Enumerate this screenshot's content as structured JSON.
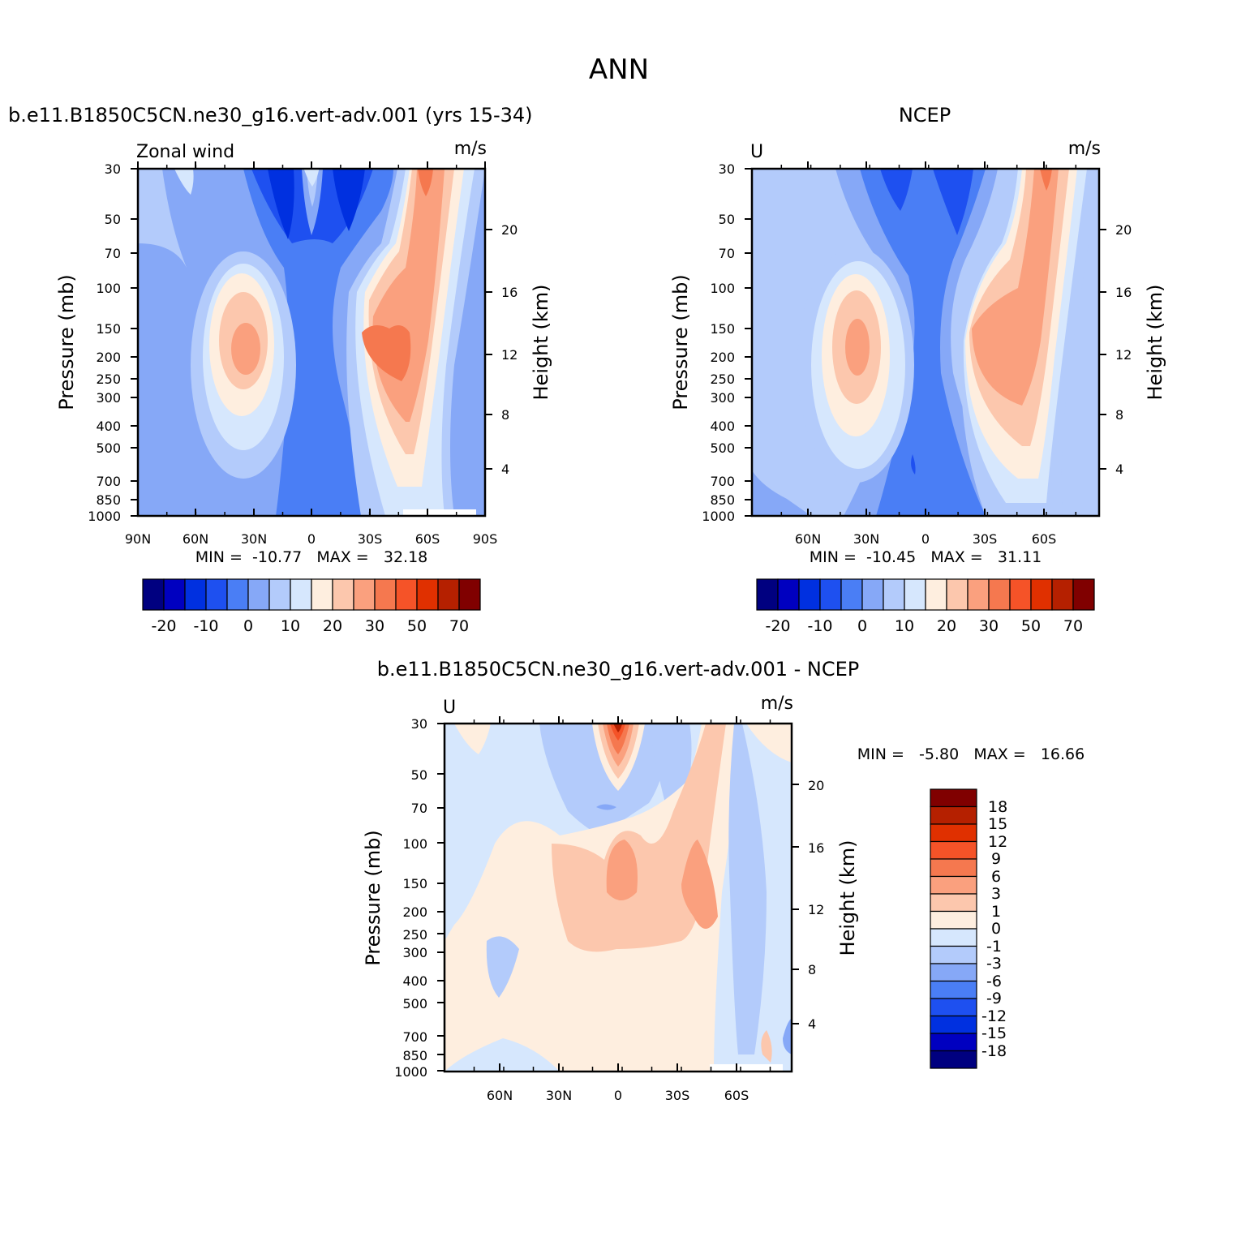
{
  "figure_title": "ANN",
  "chart_data": [
    {
      "type": "contour",
      "title": "b.e11.B1850C5CN.ne30_g16.vert-adv.001 (yrs 15-34)",
      "left_label": "Zonal wind",
      "units": "m/s",
      "xlabel": "",
      "ylabel": "Pressure (mb)",
      "y2label": "Height (km)",
      "x_ticks": [
        "90N",
        "60N",
        "30N",
        "0",
        "30S",
        "60S",
        "90S"
      ],
      "y_ticks": [
        "30",
        "50",
        "70",
        "100",
        "150",
        "200",
        "250",
        "300",
        "400",
        "500",
        "700",
        "850",
        "1000"
      ],
      "y2_ticks": [
        "20",
        "16",
        "12",
        "8",
        "4"
      ],
      "stats_text": "MIN =  -10.77   MAX =   32.18",
      "min": -10.77,
      "max": 32.18,
      "colorbar_labels": [
        "-20",
        "-10",
        "0",
        "10",
        "20",
        "30",
        "50",
        "70"
      ],
      "colors": [
        "#000080",
        "#0000c0",
        "#0030e0",
        "#1e50f0",
        "#4a7ef5",
        "#86a8f7",
        "#b3cbfb",
        "#d6e7fd",
        "#feeedf",
        "#fcc7ad",
        "#faa07e",
        "#f5784f",
        "#f55328",
        "#e03000",
        "#b52000",
        "#800000"
      ]
    },
    {
      "type": "contour",
      "title": "NCEP",
      "left_label": "U",
      "units": "m/s",
      "xlabel": "",
      "ylabel": "Pressure (mb)",
      "y2label": "Height (km)",
      "x_ticks": [
        "60N",
        "30N",
        "0",
        "30S",
        "60S"
      ],
      "y_ticks": [
        "30",
        "50",
        "70",
        "100",
        "150",
        "200",
        "250",
        "300",
        "400",
        "500",
        "700",
        "850",
        "1000"
      ],
      "y2_ticks": [
        "20",
        "16",
        "12",
        "8",
        "4"
      ],
      "stats_text": "MIN =  -10.45   MAX =   31.11",
      "min": -10.45,
      "max": 31.11,
      "colorbar_labels": [
        "-20",
        "-10",
        "0",
        "10",
        "20",
        "30",
        "50",
        "70"
      ],
      "colors": [
        "#000080",
        "#0000c0",
        "#0030e0",
        "#1e50f0",
        "#4a7ef5",
        "#86a8f7",
        "#b3cbfb",
        "#d6e7fd",
        "#feeedf",
        "#fcc7ad",
        "#faa07e",
        "#f5784f",
        "#f55328",
        "#e03000",
        "#b52000",
        "#800000"
      ]
    },
    {
      "type": "contour",
      "title": "b.e11.B1850C5CN.ne30_g16.vert-adv.001 - NCEP",
      "left_label": "U",
      "units": "m/s",
      "xlabel": "",
      "ylabel": "Pressure (mb)",
      "y2label": "Height (km)",
      "x_ticks": [
        "60N",
        "30N",
        "0",
        "30S",
        "60S"
      ],
      "y_ticks": [
        "30",
        "50",
        "70",
        "100",
        "150",
        "200",
        "250",
        "300",
        "400",
        "500",
        "700",
        "850",
        "1000"
      ],
      "y2_ticks": [
        "20",
        "16",
        "12",
        "8",
        "4"
      ],
      "stats_text": "MIN =   -5.80   MAX =   16.66",
      "min": -5.8,
      "max": 16.66,
      "colorbar_labels": [
        "18",
        "15",
        "12",
        "9",
        "6",
        "3",
        "1",
        "0",
        "-1",
        "-3",
        "-6",
        "-9",
        "-12",
        "-15",
        "-18"
      ],
      "colors": [
        "#800000",
        "#b52000",
        "#e03000",
        "#f55328",
        "#f5784f",
        "#faa07e",
        "#fcc7ad",
        "#feeedf",
        "#d6e7fd",
        "#b3cbfb",
        "#86a8f7",
        "#4a7ef5",
        "#1e50f0",
        "#0030e0",
        "#0000c0",
        "#000080"
      ]
    }
  ]
}
